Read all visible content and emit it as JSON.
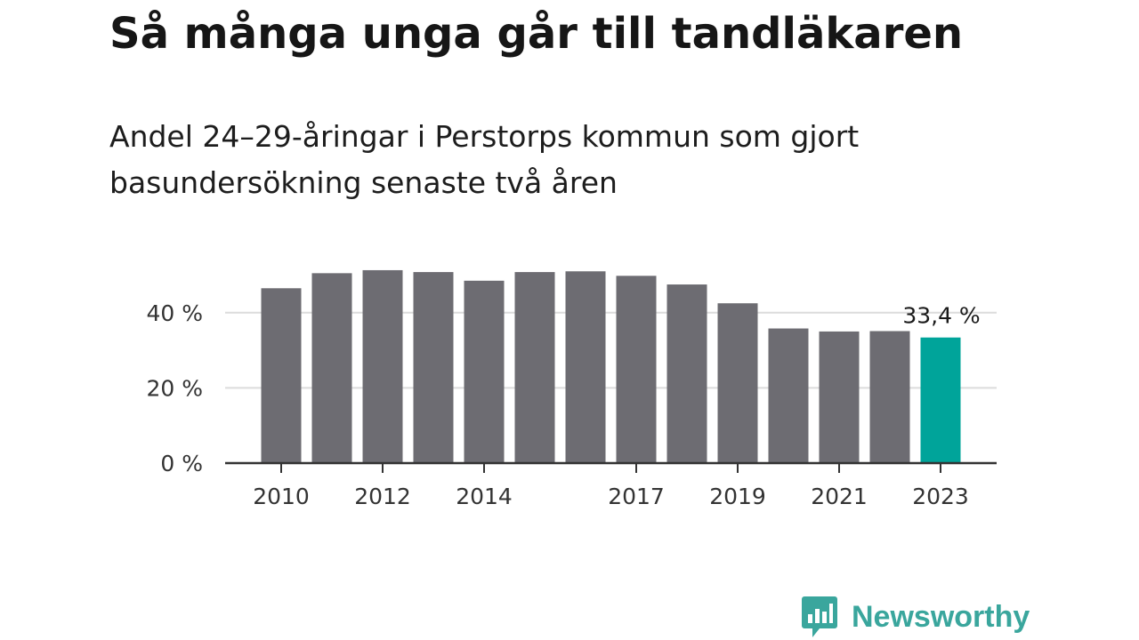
{
  "header": {
    "title": "Så många unga går till tandläkaren",
    "subtitle": "Andel 24–29-åringar i Perstorps kommun som gjort basundersökning senaste två åren"
  },
  "chart_data": {
    "type": "bar",
    "title": "Så många unga går till tandläkaren",
    "subtitle": "Andel 24–29-åringar i Perstorps kommun som gjort basundersökning senaste två åren",
    "xlabel": "",
    "ylabel": "",
    "categories": [
      "2010",
      "2011",
      "2012",
      "2013",
      "2014",
      "2015",
      "2016",
      "2017",
      "2018",
      "2019",
      "2020",
      "2021",
      "2022",
      "2023"
    ],
    "values": [
      46.5,
      50.5,
      51.3,
      50.8,
      48.5,
      50.8,
      51.0,
      49.8,
      47.5,
      42.5,
      35.8,
      35.0,
      35.1,
      33.4
    ],
    "ylim": [
      0,
      52
    ],
    "yticks": [
      0,
      20,
      40
    ],
    "ytick_labels": [
      "0 %",
      "20 %",
      "40 %"
    ],
    "xtick_labels_shown": [
      "2010",
      "2012",
      "2014",
      "2017",
      "2019",
      "2021",
      "2023"
    ],
    "annotation": {
      "category": "2023",
      "text": "33,4 %"
    },
    "grid": true,
    "legend": "none",
    "colors": {
      "bar": "#6d6c72",
      "highlight": "#00a49a",
      "grid": "#dcdcdc",
      "axis": "#333333"
    }
  },
  "branding": {
    "logo_text": "Newsworthy",
    "logo_icon": "newsworthy-chart-bubble-icon",
    "logo_color": "#3aa69d"
  }
}
